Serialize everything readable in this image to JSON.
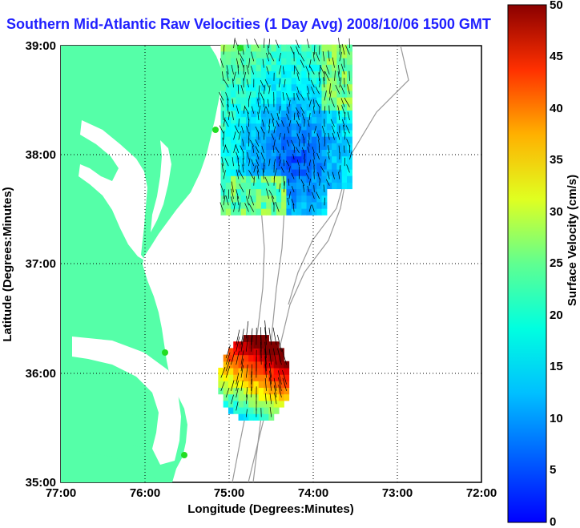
{
  "title": "Southern Mid-Atlantic Raw Velocities (1 Day Avg) 2008/10/06 1500 GMT",
  "xlabel": "Longitude (Degrees:Minutes)",
  "ylabel": "Latitude (Degrees:Minutes)",
  "x_ticks": [
    "77:00",
    "76:00",
    "75:00",
    "74:00",
    "73:00",
    "72:00"
  ],
  "y_ticks": [
    "39:00",
    "38:00",
    "37:00",
    "36:00",
    "35:00"
  ],
  "colorbar": {
    "label": "Surface Velocity (cm/s)",
    "ticks": [
      "50",
      "45",
      "40",
      "35",
      "30",
      "25",
      "20",
      "15",
      "10",
      "5",
      "0"
    ],
    "min": 0,
    "max": 50,
    "colormap": "jet"
  },
  "colors": {
    "land": "#55ffa8",
    "title": "#1f1fff",
    "bathymetry": "#999999",
    "stations": "#22dd22"
  },
  "chart_data": {
    "type": "heatmap",
    "xlim": [
      -77,
      -72
    ],
    "ylim": [
      35,
      39
    ],
    "regions": [
      {
        "name": "north",
        "lon_range": [
          -75.1,
          -73.55
        ],
        "lat_range": [
          37.45,
          39.0
        ],
        "speed_cm_s": [
          5,
          25
        ]
      },
      {
        "name": "south",
        "lon_range": [
          -75.25,
          -74.3
        ],
        "lat_range": [
          35.45,
          36.3
        ],
        "speed_cm_s": [
          8,
          50
        ]
      }
    ]
  }
}
